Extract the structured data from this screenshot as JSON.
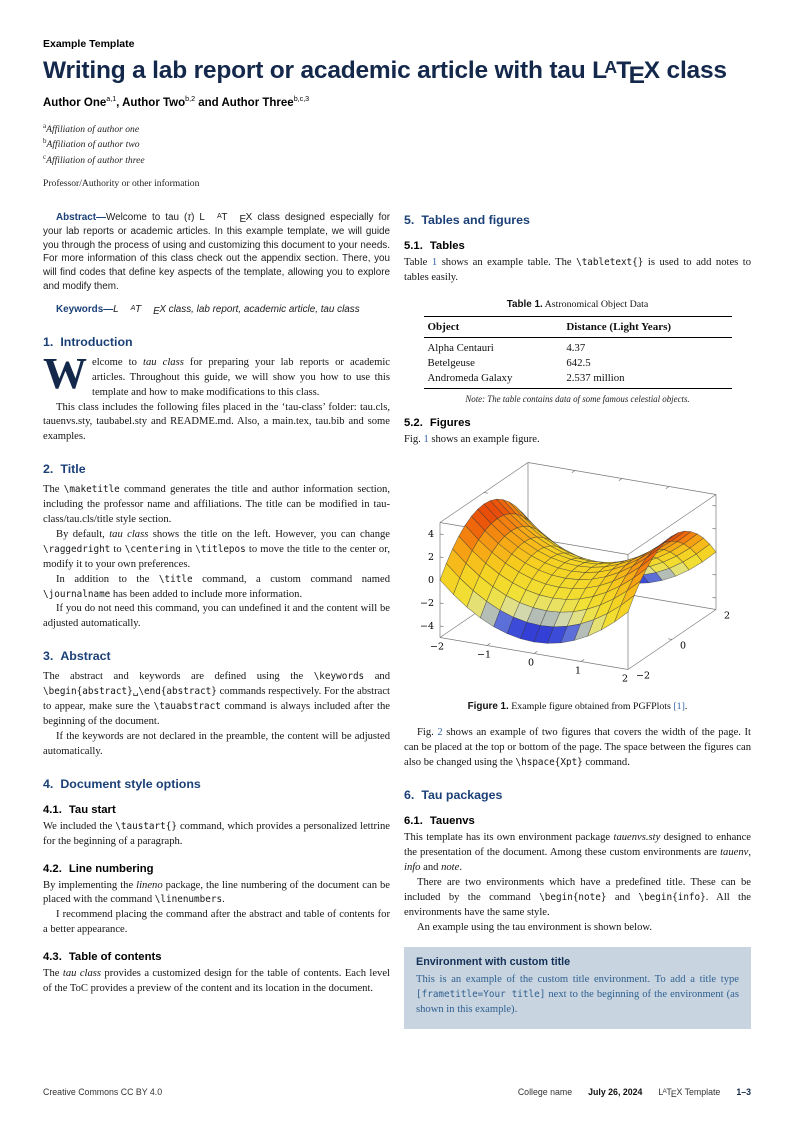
{
  "theme": {
    "title_navy": "#14284b",
    "heading_blue": "#1b4077",
    "link_blue": "#3465a4",
    "env_bg": "#c8d5e1",
    "env_title": "#143057",
    "env_body": "#2f5f8e"
  },
  "header": {
    "eyebrow": "Example Template",
    "title_segments": [
      {
        "t": "Writing a lab report or academic article with tau "
      },
      {
        "t": "LaTeX",
        "s": "latex"
      },
      {
        "t": " class"
      }
    ],
    "authors_segments": [
      {
        "t": "Author One",
        "s": "b"
      },
      {
        "t": "a,1",
        "s": "sup"
      },
      {
        "t": ", ",
        "s": "b"
      },
      {
        "t": "Author Two",
        "s": "b"
      },
      {
        "t": "b,2",
        "s": "sup"
      },
      {
        "t": " and ",
        "s": "b"
      },
      {
        "t": "Author Three",
        "s": "b"
      },
      {
        "t": "b,c,3",
        "s": "sup"
      }
    ],
    "affiliations": [
      {
        "sup": "a",
        "text": "Affiliation of author one"
      },
      {
        "sup": "b",
        "text": "Affiliation of author two"
      },
      {
        "sup": "c",
        "text": "Affiliation of author three"
      }
    ],
    "professor": "Professor/Authority or other information"
  },
  "left_column": [
    {
      "type": "p",
      "cls": "abstract",
      "seg": [
        {
          "t": "Abstract",
          "s": "lead"
        },
        {
          "t": "—",
          "s": "lead"
        },
        {
          "t": "Welcome to tau ("
        },
        {
          "t": "τ",
          "s": "i"
        },
        {
          "t": ") "
        },
        {
          "t": "LaTeX",
          "s": "latex"
        },
        {
          "t": " class designed especially for your lab reports or academic articles. In this example template, we will guide you through the process of using and customizing this document to your needs. For more information of this class check out the appendix section. There, you will find codes that define key aspects of the template, allowing you to explore and modify them."
        }
      ]
    },
    {
      "type": "p",
      "cls": "keywords",
      "seg": [
        {
          "t": "Keywords",
          "s": "lead"
        },
        {
          "t": "—",
          "s": "lead"
        },
        {
          "t": "LaTeX",
          "s": "latex"
        },
        {
          "t": " class, lab report, academic article, tau class"
        }
      ]
    },
    {
      "type": "section",
      "num": "1.",
      "title": "Introduction"
    },
    {
      "type": "p",
      "drop": "W",
      "seg": [
        {
          "t": "elcome to "
        },
        {
          "t": "tau class",
          "s": "i"
        },
        {
          "t": " for preparing your lab reports or academic articles. Throughout this guide, we will show you how to use this template and how to make modifications to this class."
        }
      ]
    },
    {
      "type": "p",
      "indent": true,
      "seg": [
        {
          "t": "This class includes the following files placed in the ‘tau-class’ folder: tau.cls, tauenvs.sty, taubabel.sty and README.md. Also, a main.tex, tau.bib and some examples."
        }
      ]
    },
    {
      "type": "section",
      "num": "2.",
      "title": "Title"
    },
    {
      "type": "p",
      "seg": [
        {
          "t": "The "
        },
        {
          "t": "\\maketitle",
          "s": "m"
        },
        {
          "t": " command generates the title and author information section, including the professor name and affiliations. The title can be modified in tau-class/tau.cls/title style section."
        }
      ]
    },
    {
      "type": "p",
      "indent": true,
      "seg": [
        {
          "t": "By default, "
        },
        {
          "t": "tau class",
          "s": "i"
        },
        {
          "t": " shows the title on the left. However, you can change "
        },
        {
          "t": "\\raggedright",
          "s": "m"
        },
        {
          "t": " to "
        },
        {
          "t": "\\centering",
          "s": "m"
        },
        {
          "t": " in "
        },
        {
          "t": "\\titlepos",
          "s": "m"
        },
        {
          "t": " to move the title to the center or, modify it to your own preferences."
        }
      ]
    },
    {
      "type": "p",
      "indent": true,
      "seg": [
        {
          "t": "In addition to the "
        },
        {
          "t": "\\title",
          "s": "m"
        },
        {
          "t": " command, a custom command named "
        },
        {
          "t": "\\journalname",
          "s": "m"
        },
        {
          "t": " has been added to include more information."
        }
      ]
    },
    {
      "type": "p",
      "indent": true,
      "seg": [
        {
          "t": "If you do not need this command, you can undefined it and the content will be adjusted automatically."
        }
      ]
    },
    {
      "type": "section",
      "num": "3.",
      "title": "Abstract"
    },
    {
      "type": "p",
      "seg": [
        {
          "t": "The abstract and keywords are defined using the "
        },
        {
          "t": "\\keywords",
          "s": "m"
        },
        {
          "t": " and "
        },
        {
          "t": "\\begin{abstract}␣\\end{abstract}",
          "s": "m"
        },
        {
          "t": " commands respectively. For the abstract to appear, make sure the "
        },
        {
          "t": "\\tauabstract",
          "s": "m"
        },
        {
          "t": " command is always included after the beginning of the document."
        }
      ]
    },
    {
      "type": "p",
      "indent": true,
      "seg": [
        {
          "t": "If the keywords are not declared in the preamble, the content will be adjusted automatically."
        }
      ]
    },
    {
      "type": "section",
      "num": "4.",
      "title": "Document style options"
    },
    {
      "type": "subsection",
      "num": "4.1.",
      "title": "Tau start"
    },
    {
      "type": "p",
      "seg": [
        {
          "t": "We included the "
        },
        {
          "t": "\\taustart{}",
          "s": "m"
        },
        {
          "t": " command, which provides a personalized lettrine for the beginning of a paragraph."
        }
      ]
    },
    {
      "type": "subsection",
      "num": "4.2.",
      "title": "Line numbering"
    },
    {
      "type": "p",
      "seg": [
        {
          "t": "By implementing the "
        },
        {
          "t": "lineno",
          "s": "i"
        },
        {
          "t": " package, the line numbering of the document can be placed with the command "
        },
        {
          "t": "\\linenumbers",
          "s": "m"
        },
        {
          "t": "."
        }
      ]
    },
    {
      "type": "p",
      "indent": true,
      "seg": [
        {
          "t": "I recommend placing the command after the abstract and table of contents for a better appearance."
        }
      ]
    },
    {
      "type": "subsection",
      "num": "4.3.",
      "title": "Table of contents"
    },
    {
      "type": "p",
      "seg": [
        {
          "t": "The "
        },
        {
          "t": "tau class",
          "s": "i"
        },
        {
          "t": " provides a customized design for the table of contents. Each level of the ToC provides a preview of the content and its location in the document."
        }
      ]
    }
  ],
  "right_column": [
    {
      "type": "section",
      "num": "5.",
      "title": "Tables and figures"
    },
    {
      "type": "subsection",
      "num": "5.1.",
      "title": "Tables"
    },
    {
      "type": "p",
      "seg": [
        {
          "t": "Table "
        },
        {
          "t": "1",
          "s": "link"
        },
        {
          "t": " shows an example table. The "
        },
        {
          "t": "\\tabletext{}",
          "s": "m"
        },
        {
          "t": " is used to add notes to tables easily."
        }
      ]
    },
    {
      "type": "table",
      "caption_lead": "Table 1.",
      "caption_rest": " Astronomical Object Data",
      "headers": [
        "Object",
        "Distance (Light Years)"
      ],
      "rows": [
        [
          "Alpha Centauri",
          "4.37"
        ],
        [
          "Betelgeuse",
          "642.5"
        ],
        [
          "Andromeda Galaxy",
          "2.537 million"
        ]
      ],
      "note": "Note: The table contains data of some famous celestial objects."
    },
    {
      "type": "subsection",
      "num": "5.2.",
      "title": "Figures"
    },
    {
      "type": "p",
      "seg": [
        {
          "t": "Fig. "
        },
        {
          "t": "1",
          "s": "link"
        },
        {
          "t": " shows an example figure."
        }
      ]
    },
    {
      "type": "figure",
      "caption_lead": "Figure 1.",
      "caption_seg": [
        {
          "t": " Example figure obtained from PGFPlots "
        },
        {
          "t": "[1]",
          "s": "link"
        },
        {
          "t": "."
        }
      ]
    },
    {
      "type": "p",
      "indent": true,
      "cls2": "after-fig",
      "seg": [
        {
          "t": "Fig. "
        },
        {
          "t": "2",
          "s": "link"
        },
        {
          "t": " shows an example of two figures that covers the width of the page. It can be placed at the top or bottom of the page. The space between the figures can also be changed using the "
        },
        {
          "t": "\\hspace{Xpt}",
          "s": "m"
        },
        {
          "t": " command."
        }
      ]
    },
    {
      "type": "section",
      "num": "6.",
      "title": "Tau packages"
    },
    {
      "type": "subsection",
      "num": "6.1.",
      "title": "Tauenvs"
    },
    {
      "type": "p",
      "seg": [
        {
          "t": "This template has its own environment package "
        },
        {
          "t": "tauenvs.sty",
          "s": "i"
        },
        {
          "t": " designed to enhance the presentation of the document. Among these custom environments are "
        },
        {
          "t": "tauenv",
          "s": "i"
        },
        {
          "t": ", "
        },
        {
          "t": "info",
          "s": "i"
        },
        {
          "t": " and "
        },
        {
          "t": "note",
          "s": "i"
        },
        {
          "t": "."
        }
      ]
    },
    {
      "type": "p",
      "indent": true,
      "seg": [
        {
          "t": "There are two environments which have a predefined title. These can be included by the command "
        },
        {
          "t": "\\begin{note}",
          "s": "m"
        },
        {
          "t": " and "
        },
        {
          "t": "\\begin{info}",
          "s": "m"
        },
        {
          "t": ". All the environments have the same style."
        }
      ]
    },
    {
      "type": "p",
      "indent": true,
      "seg": [
        {
          "t": "An example using the tau environment is shown below."
        }
      ]
    },
    {
      "type": "envbox",
      "title": "Environment with custom title",
      "seg": [
        {
          "t": "This is an example of the custom title environment. To add a title type "
        },
        {
          "t": "[frametitle=Your title]",
          "s": "m"
        },
        {
          "t": " next to the beginning of the environment (as shown in this example)."
        }
      ]
    }
  ],
  "chart_data": {
    "type": "surface",
    "title": "",
    "expr": "x*x - y*y",
    "function_label": "z = x^2 - y^2",
    "x_range": [
      -2,
      2
    ],
    "y_range": [
      -2,
      2
    ],
    "z_range": [
      -4,
      4
    ],
    "box_z_range": [
      -5,
      5
    ],
    "x_ticks": [
      -2,
      -1,
      0,
      1,
      2
    ],
    "y_ticks": [
      -2,
      0,
      2
    ],
    "z_ticks": [
      -4,
      -2,
      0,
      2,
      4
    ],
    "grid_divisions": 14,
    "colormap": [
      [
        0.0,
        "#1012c8"
      ],
      [
        0.12,
        "#4a5ede"
      ],
      [
        0.22,
        "#dadfa8"
      ],
      [
        0.34,
        "#f1e237"
      ],
      [
        0.55,
        "#f6ce1f"
      ],
      [
        0.72,
        "#f6a214"
      ],
      [
        0.87,
        "#f0660b"
      ],
      [
        1.0,
        "#e12e08"
      ]
    ],
    "legend": "none",
    "grid": true
  },
  "footer": {
    "left": "Creative Commons CC BY 4.0",
    "right_items": [
      {
        "seg": [
          {
            "t": "College name"
          }
        ]
      },
      {
        "seg": [
          {
            "t": "July 26, 2024",
            "s": "b"
          }
        ]
      },
      {
        "seg": [
          {
            "t": "LaTeX",
            "s": "latex"
          },
          {
            "t": " Template"
          }
        ]
      },
      {
        "seg": [
          {
            "t": "1–3",
            "s": "pg"
          }
        ]
      }
    ]
  }
}
